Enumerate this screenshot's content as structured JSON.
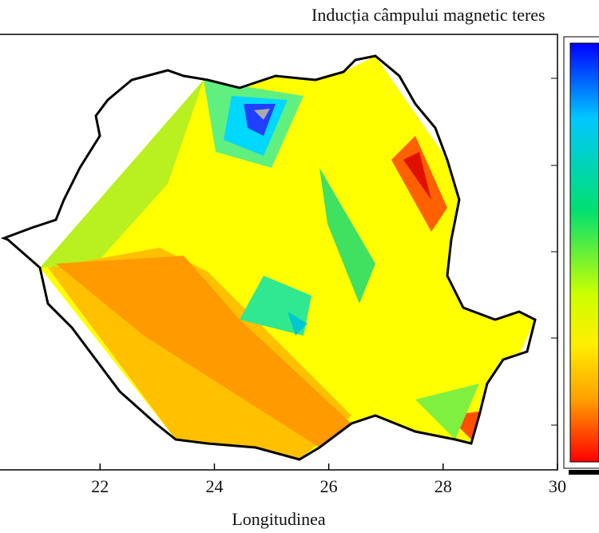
{
  "chart_data": {
    "type": "contour",
    "title": "Inducția câmpului magnetic teres",
    "xlabel": "Longitudinea",
    "xlim": [
      20.25,
      30
    ],
    "xticks": [
      22,
      24,
      26,
      28,
      30
    ]
  }
}
